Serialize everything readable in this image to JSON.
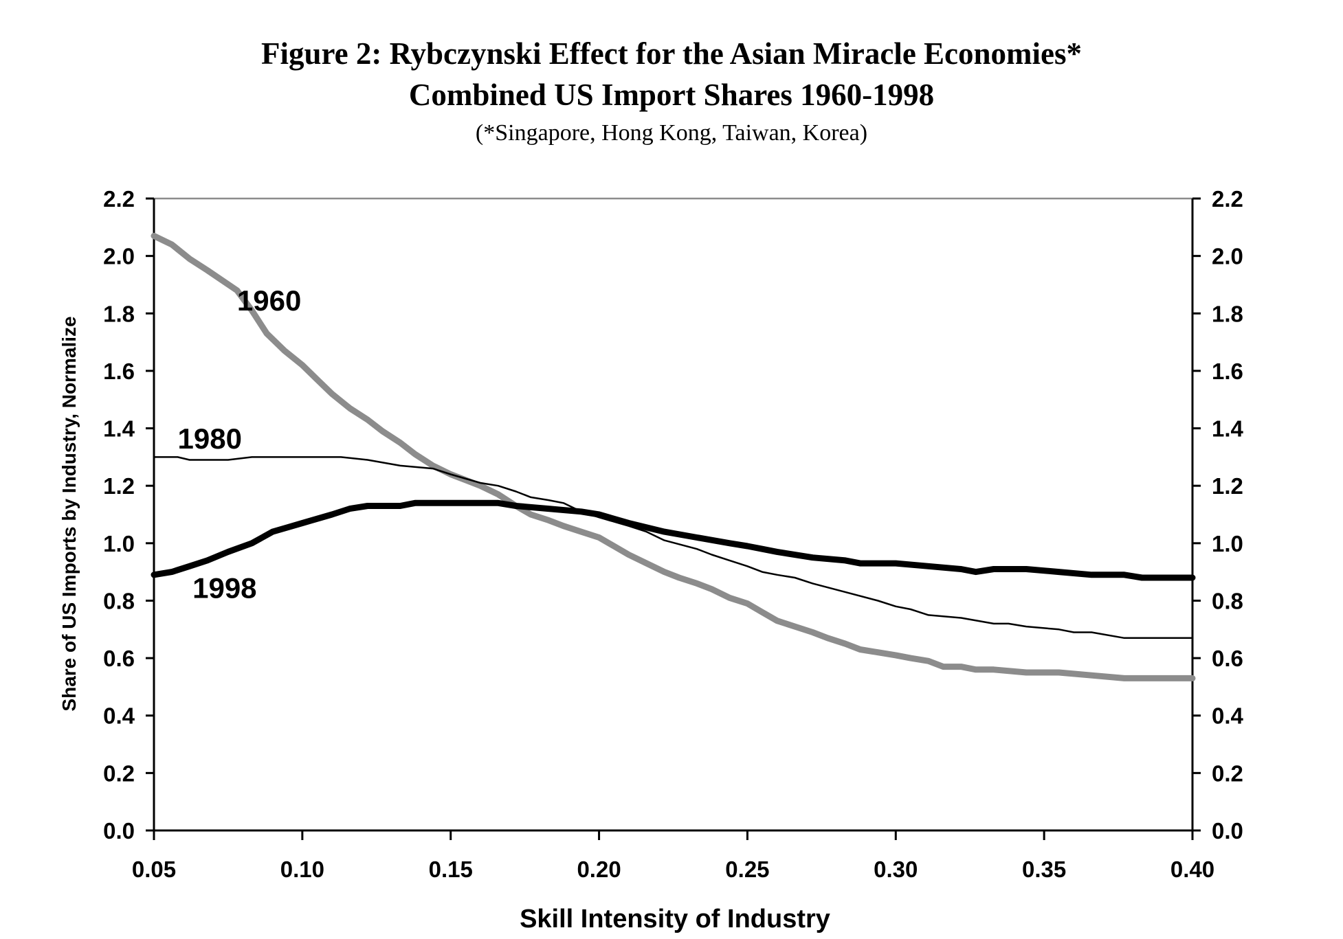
{
  "chart_data": {
    "type": "line",
    "title": "Figure 2: Rybczynski Effect for the Asian Miracle Economies*",
    "subtitle": "Combined US Import Shares 1960-1998",
    "note": "(*Singapore, Hong Kong, Taiwan, Korea)",
    "xlabel": "Skill Intensity of Industry",
    "ylabel": "Share of US Imports by Industry, Normalize",
    "xlim": [
      0.05,
      0.4
    ],
    "ylim": [
      0.0,
      2.2
    ],
    "x_ticks": [
      "0.05",
      "0.10",
      "0.15",
      "0.20",
      "0.25",
      "0.30",
      "0.35",
      "0.40"
    ],
    "y_ticks": [
      "0.0",
      "0.2",
      "0.4",
      "0.6",
      "0.8",
      "1.0",
      "1.2",
      "1.4",
      "1.6",
      "1.8",
      "2.0",
      "2.2"
    ],
    "grid": false,
    "series": [
      {
        "name": "1960",
        "color": "#8c8c8c",
        "width": "thick",
        "points": [
          [
            0.05,
            2.07
          ],
          [
            0.056,
            2.04
          ],
          [
            0.062,
            1.99
          ],
          [
            0.068,
            1.95
          ],
          [
            0.078,
            1.88
          ],
          [
            0.083,
            1.81
          ],
          [
            0.088,
            1.73
          ],
          [
            0.094,
            1.67
          ],
          [
            0.1,
            1.62
          ],
          [
            0.105,
            1.57
          ],
          [
            0.11,
            1.52
          ],
          [
            0.116,
            1.47
          ],
          [
            0.122,
            1.43
          ],
          [
            0.127,
            1.39
          ],
          [
            0.133,
            1.35
          ],
          [
            0.138,
            1.31
          ],
          [
            0.144,
            1.27
          ],
          [
            0.15,
            1.24
          ],
          [
            0.155,
            1.22
          ],
          [
            0.16,
            1.2
          ],
          [
            0.166,
            1.17
          ],
          [
            0.172,
            1.13
          ],
          [
            0.177,
            1.1
          ],
          [
            0.183,
            1.08
          ],
          [
            0.188,
            1.06
          ],
          [
            0.194,
            1.04
          ],
          [
            0.2,
            1.02
          ],
          [
            0.205,
            0.99
          ],
          [
            0.21,
            0.96
          ],
          [
            0.216,
            0.93
          ],
          [
            0.222,
            0.9
          ],
          [
            0.227,
            0.88
          ],
          [
            0.233,
            0.86
          ],
          [
            0.238,
            0.84
          ],
          [
            0.244,
            0.81
          ],
          [
            0.25,
            0.79
          ],
          [
            0.255,
            0.76
          ],
          [
            0.26,
            0.73
          ],
          [
            0.266,
            0.71
          ],
          [
            0.272,
            0.69
          ],
          [
            0.277,
            0.67
          ],
          [
            0.283,
            0.65
          ],
          [
            0.288,
            0.63
          ],
          [
            0.294,
            0.62
          ],
          [
            0.3,
            0.61
          ],
          [
            0.305,
            0.6
          ],
          [
            0.311,
            0.59
          ],
          [
            0.316,
            0.57
          ],
          [
            0.322,
            0.57
          ],
          [
            0.327,
            0.56
          ],
          [
            0.333,
            0.56
          ],
          [
            0.344,
            0.55
          ],
          [
            0.355,
            0.55
          ],
          [
            0.366,
            0.54
          ],
          [
            0.377,
            0.53
          ],
          [
            0.4,
            0.53
          ]
        ]
      },
      {
        "name": "1980",
        "color": "#000000",
        "width": "thin",
        "points": [
          [
            0.05,
            1.3
          ],
          [
            0.058,
            1.3
          ],
          [
            0.062,
            1.29
          ],
          [
            0.075,
            1.29
          ],
          [
            0.083,
            1.3
          ],
          [
            0.1,
            1.3
          ],
          [
            0.113,
            1.3
          ],
          [
            0.122,
            1.29
          ],
          [
            0.133,
            1.27
          ],
          [
            0.144,
            1.26
          ],
          [
            0.15,
            1.24
          ],
          [
            0.16,
            1.21
          ],
          [
            0.166,
            1.2
          ],
          [
            0.172,
            1.18
          ],
          [
            0.177,
            1.16
          ],
          [
            0.183,
            1.15
          ],
          [
            0.188,
            1.14
          ],
          [
            0.194,
            1.11
          ],
          [
            0.2,
            1.09
          ],
          [
            0.21,
            1.06
          ],
          [
            0.216,
            1.04
          ],
          [
            0.222,
            1.01
          ],
          [
            0.233,
            0.98
          ],
          [
            0.238,
            0.96
          ],
          [
            0.244,
            0.94
          ],
          [
            0.25,
            0.92
          ],
          [
            0.255,
            0.9
          ],
          [
            0.26,
            0.89
          ],
          [
            0.266,
            0.88
          ],
          [
            0.272,
            0.86
          ],
          [
            0.283,
            0.83
          ],
          [
            0.294,
            0.8
          ],
          [
            0.3,
            0.78
          ],
          [
            0.305,
            0.77
          ],
          [
            0.311,
            0.75
          ],
          [
            0.322,
            0.74
          ],
          [
            0.333,
            0.72
          ],
          [
            0.338,
            0.72
          ],
          [
            0.344,
            0.71
          ],
          [
            0.355,
            0.7
          ],
          [
            0.36,
            0.69
          ],
          [
            0.366,
            0.69
          ],
          [
            0.377,
            0.67
          ],
          [
            0.4,
            0.67
          ]
        ]
      },
      {
        "name": "1998",
        "color": "#000000",
        "width": "thick",
        "points": [
          [
            0.05,
            0.89
          ],
          [
            0.056,
            0.9
          ],
          [
            0.062,
            0.92
          ],
          [
            0.068,
            0.94
          ],
          [
            0.075,
            0.97
          ],
          [
            0.083,
            1.0
          ],
          [
            0.09,
            1.04
          ],
          [
            0.1,
            1.07
          ],
          [
            0.11,
            1.1
          ],
          [
            0.116,
            1.12
          ],
          [
            0.122,
            1.13
          ],
          [
            0.133,
            1.13
          ],
          [
            0.138,
            1.14
          ],
          [
            0.15,
            1.14
          ],
          [
            0.16,
            1.14
          ],
          [
            0.166,
            1.14
          ],
          [
            0.172,
            1.13
          ],
          [
            0.183,
            1.12
          ],
          [
            0.194,
            1.11
          ],
          [
            0.2,
            1.1
          ],
          [
            0.21,
            1.07
          ],
          [
            0.222,
            1.04
          ],
          [
            0.233,
            1.02
          ],
          [
            0.244,
            1.0
          ],
          [
            0.25,
            0.99
          ],
          [
            0.255,
            0.98
          ],
          [
            0.26,
            0.97
          ],
          [
            0.272,
            0.95
          ],
          [
            0.283,
            0.94
          ],
          [
            0.288,
            0.93
          ],
          [
            0.3,
            0.93
          ],
          [
            0.311,
            0.92
          ],
          [
            0.322,
            0.91
          ],
          [
            0.327,
            0.9
          ],
          [
            0.333,
            0.91
          ],
          [
            0.344,
            0.91
          ],
          [
            0.355,
            0.9
          ],
          [
            0.366,
            0.89
          ],
          [
            0.377,
            0.89
          ],
          [
            0.383,
            0.88
          ],
          [
            0.4,
            0.88
          ]
        ]
      }
    ],
    "series_label_positions": [
      {
        "name": "1960",
        "x": 0.078,
        "y": 1.81
      },
      {
        "name": "1980",
        "x": 0.058,
        "y": 1.33
      },
      {
        "name": "1998",
        "x": 0.063,
        "y": 0.81
      }
    ]
  }
}
